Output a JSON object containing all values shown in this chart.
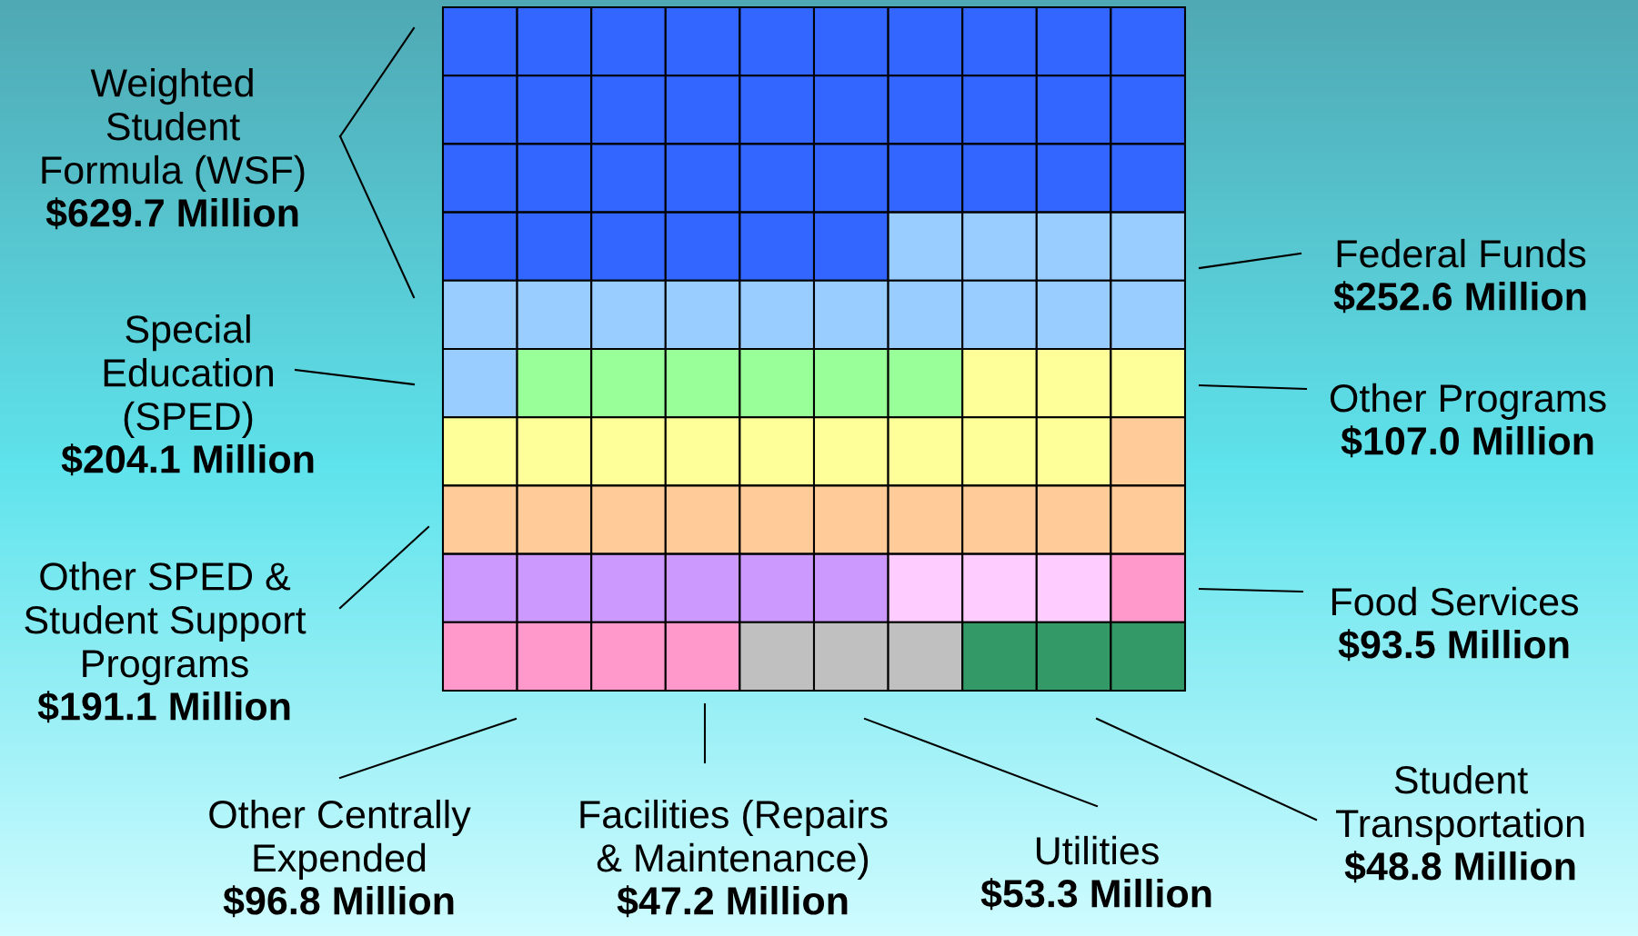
{
  "chart_data": {
    "type": "other",
    "categories": [
      "Weighted\nStudent\nFormula (WSF)",
      "Federal Funds",
      "Other Programs",
      "Special\nEducation\n(SPED)",
      "Other SPED &\nStudent Support\nPrograms",
      "Other Centrally\nExpended",
      "Facilities (Repairs\n& Maintenance)",
      "Food Services",
      "Utilities",
      "Student\nTransportation"
    ],
    "values": [
      629.7,
      252.6,
      107.0,
      204.1,
      191.1,
      96.8,
      47.2,
      93.5,
      53.3,
      48.8
    ],
    "value_labels": [
      "$629.7 Million",
      "$252.6 Million",
      "$107.0 Million",
      "$204.1 Million",
      "$191.1 Million",
      "$96.8 Million",
      "$47.2 Million",
      "$93.5 Million",
      "$53.3 Million",
      "$48.8 Million"
    ],
    "colors": [
      "#3366ff",
      "#99ccff",
      "#99ff99",
      "#ffff99",
      "#ffcc99",
      "#cc99ff",
      "#ffccff",
      "#ff99cc",
      "#c0c0c0",
      "#339966"
    ]
  }
}
